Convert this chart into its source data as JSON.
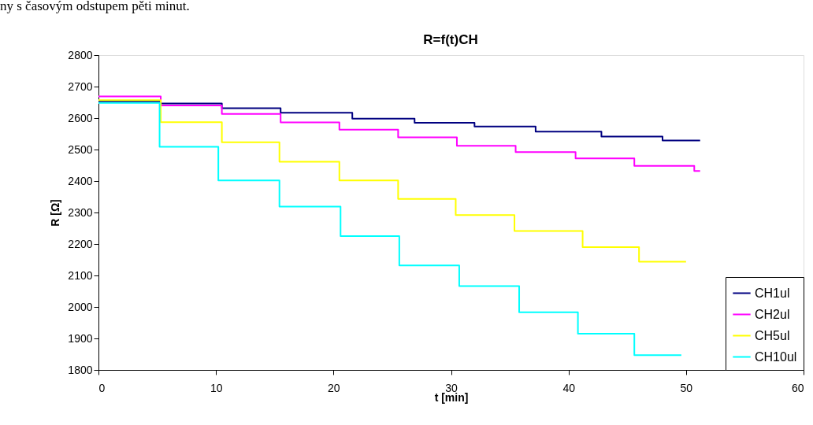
{
  "chart_data": {
    "type": "step",
    "title": "R=f(t)CH",
    "xlabel": "t [min]",
    "ylabel": "R [Ω]",
    "annotations": [
      "ny s časovým odstupem pěti minut."
    ],
    "xlim": [
      0,
      60
    ],
    "xticks": [
      0,
      10,
      20,
      30,
      40,
      50,
      60
    ],
    "ylim": [
      1800,
      2800
    ],
    "yticks": [
      1800,
      1900,
      2000,
      2100,
      2200,
      2300,
      2400,
      2500,
      2600,
      2700,
      2800
    ],
    "grid": false,
    "legend": "bottom right",
    "marker": "none",
    "line_style": "solid",
    "series": [
      {
        "name": "CH1ul",
        "color": "#000080",
        "x": [
          0,
          5.3,
          10.5,
          15.5,
          21.6,
          26.9,
          32.0,
          37.2,
          42.8,
          48.0,
          51.2
        ],
        "values": [
          2653,
          2646,
          2631,
          2617,
          2598,
          2585,
          2573,
          2557,
          2541,
          2529,
          2529
        ]
      },
      {
        "name": "CH2ul",
        "color": "#ff00ff",
        "x": [
          0,
          5.3,
          10.5,
          15.5,
          20.5,
          25.5,
          30.5,
          35.5,
          40.6,
          45.6,
          50.7,
          51.2
        ],
        "values": [
          2669,
          2640,
          2613,
          2586,
          2563,
          2539,
          2512,
          2492,
          2472,
          2448,
          2432,
          2432
        ]
      },
      {
        "name": "CH5ul",
        "color": "#ffff00",
        "x": [
          0,
          5.3,
          10.5,
          15.4,
          20.5,
          25.5,
          30.4,
          35.4,
          41.2,
          46.0,
          50.0
        ],
        "values": [
          2657,
          2587,
          2523,
          2461,
          2402,
          2343,
          2292,
          2241,
          2190,
          2144,
          2144
        ]
      },
      {
        "name": "CH10ul",
        "color": "#00ffff",
        "x": [
          0,
          5.2,
          10.2,
          15.4,
          20.6,
          25.6,
          30.7,
          35.8,
          40.8,
          45.6,
          49.6
        ],
        "values": [
          2648,
          2509,
          2402,
          2319,
          2225,
          2132,
          2066,
          1983,
          1915,
          1847,
          1847
        ]
      }
    ]
  }
}
